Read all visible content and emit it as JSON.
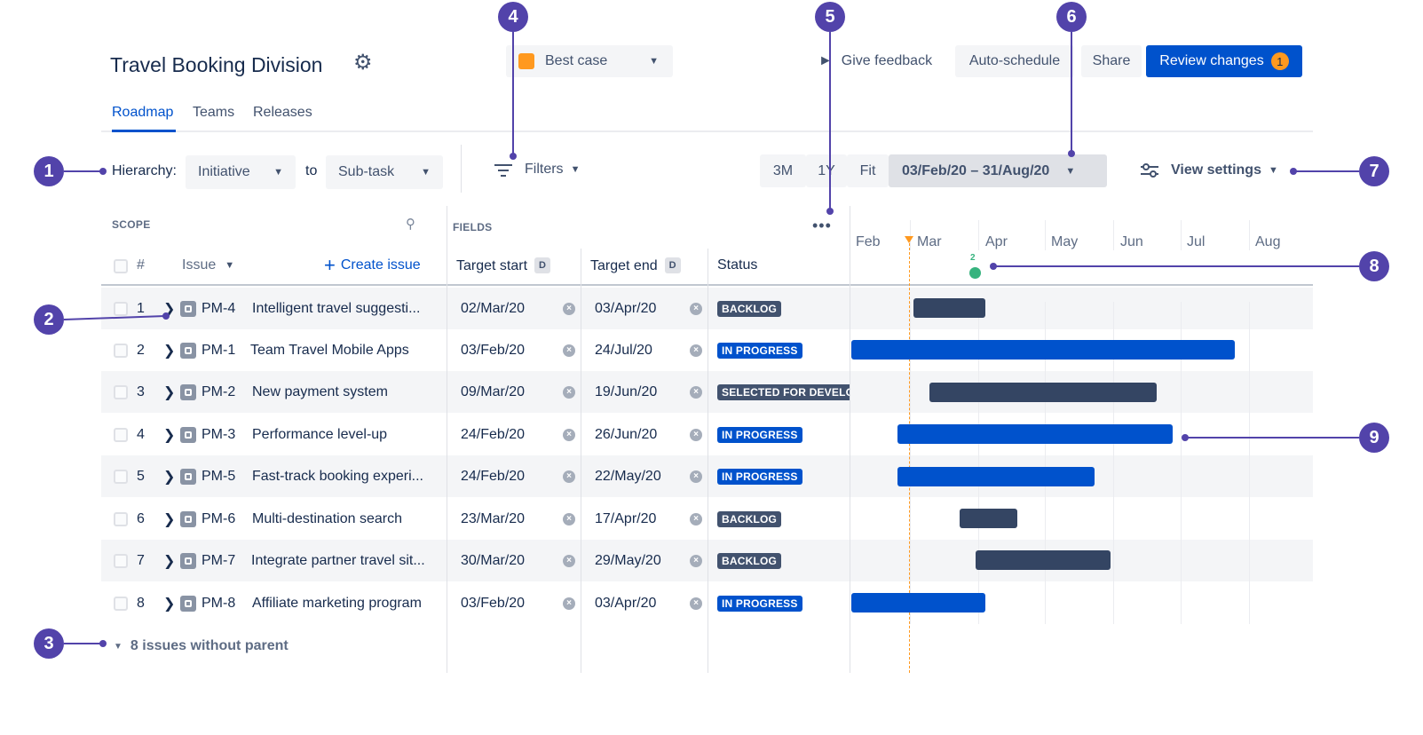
{
  "header": {
    "title": "Travel Booking Division",
    "scenario": "Best case",
    "scenario_color": "#ff991f",
    "give_feedback": "Give feedback",
    "auto_schedule": "Auto-schedule",
    "share": "Share",
    "review_changes": "Review changes",
    "review_count": "1"
  },
  "tabs": [
    {
      "label": "Roadmap",
      "active": true
    },
    {
      "label": "Teams",
      "active": false
    },
    {
      "label": "Releases",
      "active": false
    }
  ],
  "toolbar": {
    "hierarchy_label": "Hierarchy:",
    "hierarchy_from": "Initiative",
    "to_label": "to",
    "hierarchy_to": "Sub-task",
    "filters": "Filters",
    "zoom_3m": "3M",
    "zoom_1y": "1Y",
    "zoom_fit": "Fit",
    "date_range": "03/Feb/20 – 31/Aug/20",
    "view_settings": "View settings"
  },
  "scope": {
    "heading": "SCOPE",
    "hash": "#",
    "issue_col": "Issue",
    "create_issue": "Create issue"
  },
  "fields": {
    "heading": "FIELDS",
    "target_start": "Target start",
    "target_end": "Target end",
    "d": "D",
    "status": "Status"
  },
  "timeline": {
    "months": [
      "Feb",
      "Mar",
      "Apr",
      "May",
      "Jun",
      "Jul",
      "Aug"
    ],
    "release_count": "2"
  },
  "rows": [
    {
      "n": "1",
      "key": "PM-4",
      "summary": "Intelligent travel suggesti...",
      "start": "02/Mar/20",
      "end": "03/Apr/20",
      "status": "BACKLOG",
      "status_kind": "dark"
    },
    {
      "n": "2",
      "key": "PM-1",
      "summary": "Team Travel Mobile Apps",
      "start": "03/Feb/20",
      "end": "24/Jul/20",
      "status": "IN PROGRESS",
      "status_kind": "blue"
    },
    {
      "n": "3",
      "key": "PM-2",
      "summary": "New payment system",
      "start": "09/Mar/20",
      "end": "19/Jun/20",
      "status": "SELECTED FOR DEVELO",
      "status_kind": "dark"
    },
    {
      "n": "4",
      "key": "PM-3",
      "summary": "Performance level-up",
      "start": "24/Feb/20",
      "end": "26/Jun/20",
      "status": "IN PROGRESS",
      "status_kind": "blue"
    },
    {
      "n": "5",
      "key": "PM-5",
      "summary": "Fast-track booking experi...",
      "start": "24/Feb/20",
      "end": "22/May/20",
      "status": "IN PROGRESS",
      "status_kind": "blue"
    },
    {
      "n": "6",
      "key": "PM-6",
      "summary": "Multi-destination search",
      "start": "23/Mar/20",
      "end": "17/Apr/20",
      "status": "BACKLOG",
      "status_kind": "dark"
    },
    {
      "n": "7",
      "key": "PM-7",
      "summary": "Integrate partner travel sit...",
      "start": "30/Mar/20",
      "end": "29/May/20",
      "status": "BACKLOG",
      "status_kind": "dark"
    },
    {
      "n": "8",
      "key": "PM-8",
      "summary": "Affiliate marketing program",
      "start": "03/Feb/20",
      "end": "03/Apr/20",
      "status": "IN PROGRESS",
      "status_kind": "blue"
    }
  ],
  "footer": {
    "without_parent": "8 issues without parent"
  },
  "callouts": [
    "1",
    "2",
    "3",
    "4",
    "5",
    "6",
    "7",
    "8",
    "9"
  ]
}
